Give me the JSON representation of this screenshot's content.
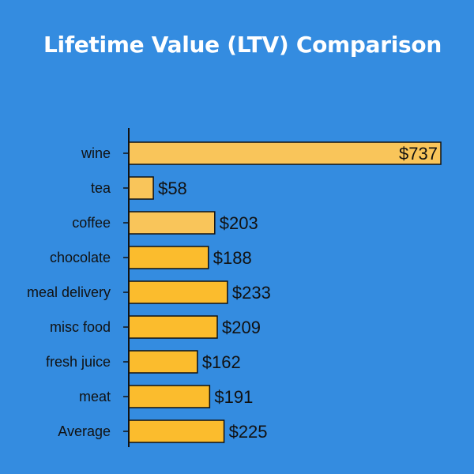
{
  "chart_data": {
    "type": "bar",
    "orientation": "horizontal",
    "title": "Lifetime Value (LTV) Comparison",
    "xlabel": "",
    "ylabel": "",
    "categories": [
      "wine",
      "tea",
      "coffee",
      "chocolate",
      "meal delivery",
      "misc food",
      "fresh juice",
      "meat",
      "Average"
    ],
    "values": [
      737,
      58,
      203,
      188,
      233,
      209,
      162,
      191,
      225
    ],
    "value_labels": [
      "$737",
      "$58",
      "$203",
      "$188",
      "$233",
      "$209",
      "$162",
      "$191",
      "$225"
    ],
    "bar_colors": [
      "#f9c55a",
      "#f9c55a",
      "#f9c55a",
      "#fbbc2d",
      "#fbbc2d",
      "#fbbc2d",
      "#fbbc2d",
      "#fbbc2d",
      "#fbbc2d"
    ],
    "xlim": [
      0,
      737
    ],
    "grid": false,
    "legend": "none"
  },
  "colors": {
    "background": "#348ce0",
    "title": "#ffffff",
    "axis": "#111111",
    "bar_outline": "#111111"
  }
}
